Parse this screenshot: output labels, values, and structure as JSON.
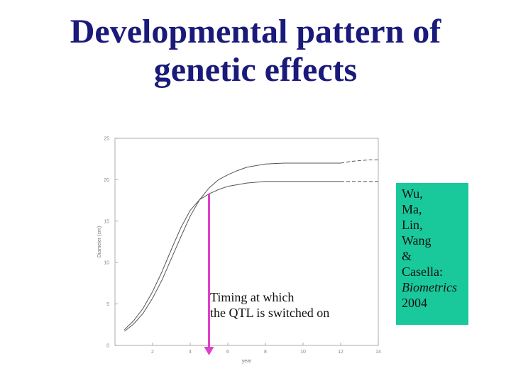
{
  "title": {
    "line1": "Developmental pattern of",
    "line2": "genetic effects"
  },
  "annotation": {
    "line1": "Timing at which",
    "line2": "the QTL is switched on"
  },
  "citation": {
    "lines": [
      "Wu,",
      "Ma,",
      "Lin,",
      "Wang",
      "&",
      "Casella:"
    ],
    "journal": "Biometrics",
    "year": "2004"
  },
  "colors": {
    "title": "#1a1a7a",
    "arrow": "#e040c8",
    "citation_box": "#19c99b",
    "curves": "#555555"
  },
  "chart_data": {
    "type": "line",
    "xlabel": "year",
    "ylabel": "Diameter (cm)",
    "xlim": [
      0,
      14
    ],
    "ylim": [
      0,
      25
    ],
    "xticks": [
      2,
      4,
      6,
      8,
      10,
      12,
      14
    ],
    "yticks": [
      0,
      5,
      10,
      15,
      20,
      25
    ],
    "grid": false,
    "series": [
      {
        "style": "solid",
        "x": [
          0.5,
          1,
          1.5,
          2,
          2.5,
          3,
          3.5,
          4,
          4.5,
          5,
          5.5,
          6,
          6.5,
          7,
          7.5,
          8,
          9,
          10,
          11,
          12
        ],
        "y": [
          1.7,
          2.6,
          3.9,
          5.7,
          7.9,
          10.5,
          13.1,
          15.6,
          17.6,
          19.0,
          20.0,
          20.6,
          21.1,
          21.5,
          21.7,
          21.9,
          22.0,
          22.0,
          22.0,
          22.0
        ]
      },
      {
        "style": "dashed",
        "x": [
          12,
          12.5,
          13,
          13.5,
          14
        ],
        "y": [
          22.0,
          22.2,
          22.3,
          22.4,
          22.4
        ]
      },
      {
        "style": "solid",
        "x": [
          0.5,
          1,
          1.5,
          2,
          2.5,
          3,
          3.5,
          4,
          4.5,
          5,
          5.5,
          6,
          7,
          8,
          9,
          10,
          11,
          12
        ],
        "y": [
          1.9,
          3.0,
          4.5,
          6.5,
          8.9,
          11.6,
          14.2,
          16.3,
          17.6,
          18.3,
          18.8,
          19.2,
          19.6,
          19.8,
          19.8,
          19.8,
          19.8,
          19.8
        ]
      },
      {
        "style": "dashed",
        "x": [
          12,
          12.5,
          13,
          13.5,
          14
        ],
        "y": [
          19.8,
          19.8,
          19.8,
          19.8,
          19.8
        ]
      }
    ],
    "marker": {
      "x": 5,
      "y_top": 18.3,
      "y_bottom": 0
    }
  }
}
